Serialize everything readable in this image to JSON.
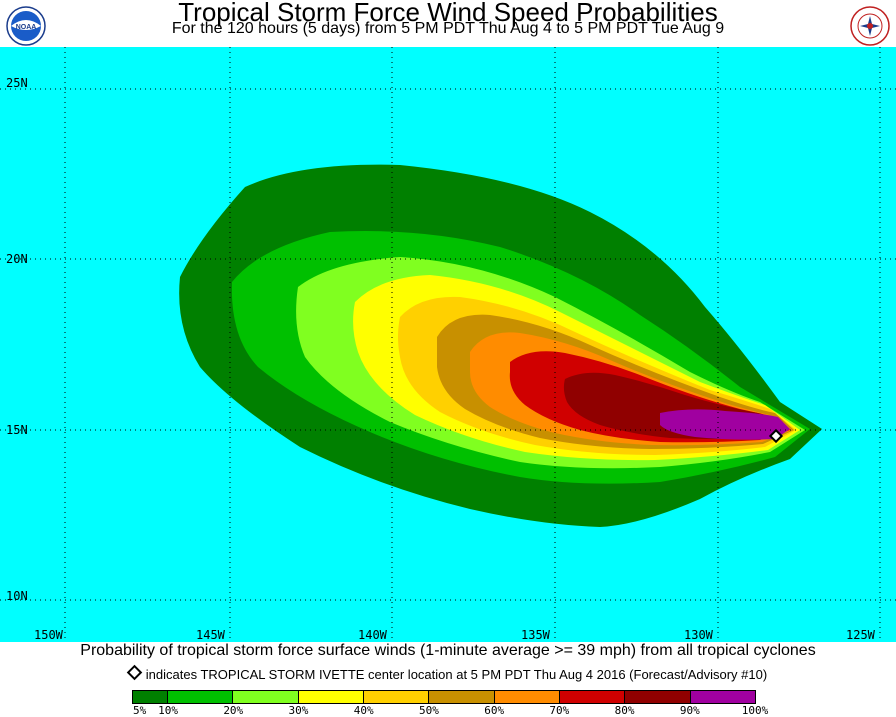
{
  "header": {
    "title": "Tropical Storm Force Wind Speed Probabilities",
    "subtitle": "For the 120 hours (5 days) from 5 PM PDT Thu Aug 4 to 5 PM PDT Tue Aug 9"
  },
  "logos": {
    "left": "noaa-logo",
    "left_text": "NOAA",
    "right": "nws-logo"
  },
  "map": {
    "background_color": "#00ffff",
    "lat_labels": [
      "25N",
      "20N",
      "15N",
      "10N"
    ],
    "lon_labels": [
      "150W",
      "145W",
      "140W",
      "135W",
      "130W",
      "125W"
    ],
    "storm_marker": "storm-center-diamond"
  },
  "caption": "Probability of tropical storm force surface winds (1-minute average >= 39 mph) from all tropical cyclones",
  "note": "indicates TROPICAL STORM IVETTE center location at 5 PM PDT Thu Aug 4 2016 (Forecast/Advisory #10)",
  "legend": {
    "colors": [
      "#008000",
      "#00c000",
      "#80ff20",
      "#ffff00",
      "#ffd000",
      "#c89000",
      "#ff8c00",
      "#d00000",
      "#900000",
      "#a000a0"
    ],
    "labels": [
      "5%",
      "10%",
      "20%",
      "30%",
      "40%",
      "50%",
      "60%",
      "70%",
      "80%",
      "90%",
      "100%"
    ]
  }
}
